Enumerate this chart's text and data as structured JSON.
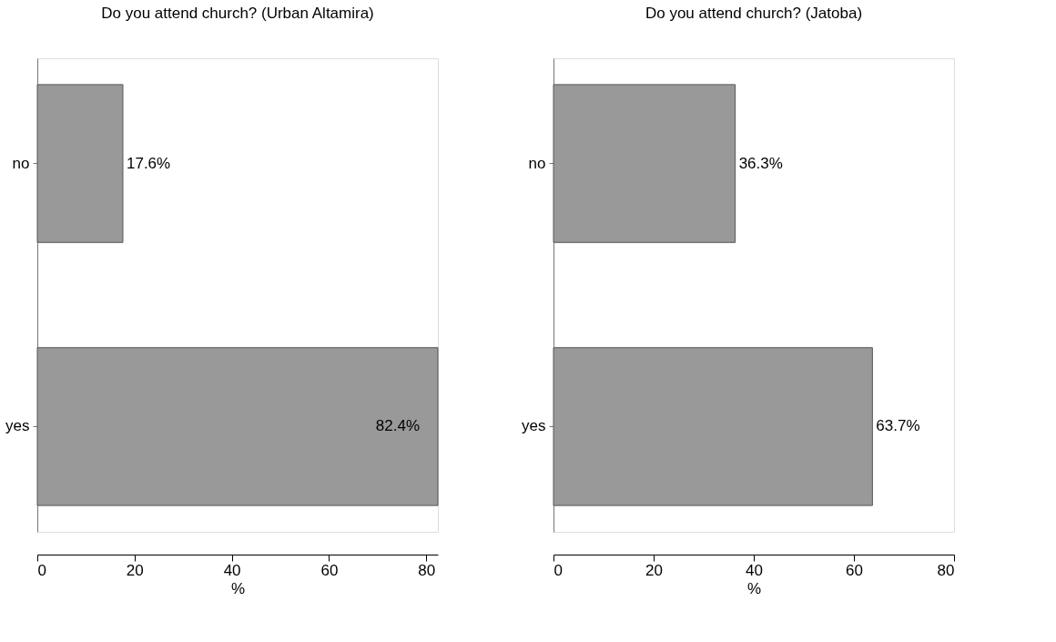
{
  "chart_data": [
    {
      "type": "bar",
      "orientation": "horizontal",
      "title": "Do you attend church? (Urban Altamira)",
      "xlabel": "%",
      "categories": [
        "no",
        "yes"
      ],
      "values": [
        17.6,
        82.4
      ],
      "color": "#999999",
      "value_labels": [
        "17.6%",
        "82.4%"
      ],
      "xlim": [
        0,
        82.4
      ],
      "xticks": [
        0,
        20,
        40,
        60,
        80
      ],
      "grid": false
    },
    {
      "type": "bar",
      "orientation": "horizontal",
      "title": "Do you attend church? (Jatoba)",
      "xlabel": "%",
      "categories": [
        "no",
        "yes"
      ],
      "values": [
        36.3,
        63.7
      ],
      "color": "#999999",
      "value_labels": [
        "36.3%",
        "63.7%"
      ],
      "xlim": [
        0,
        80
      ],
      "xticks": [
        0,
        20,
        40,
        60,
        80
      ],
      "grid": false
    }
  ]
}
